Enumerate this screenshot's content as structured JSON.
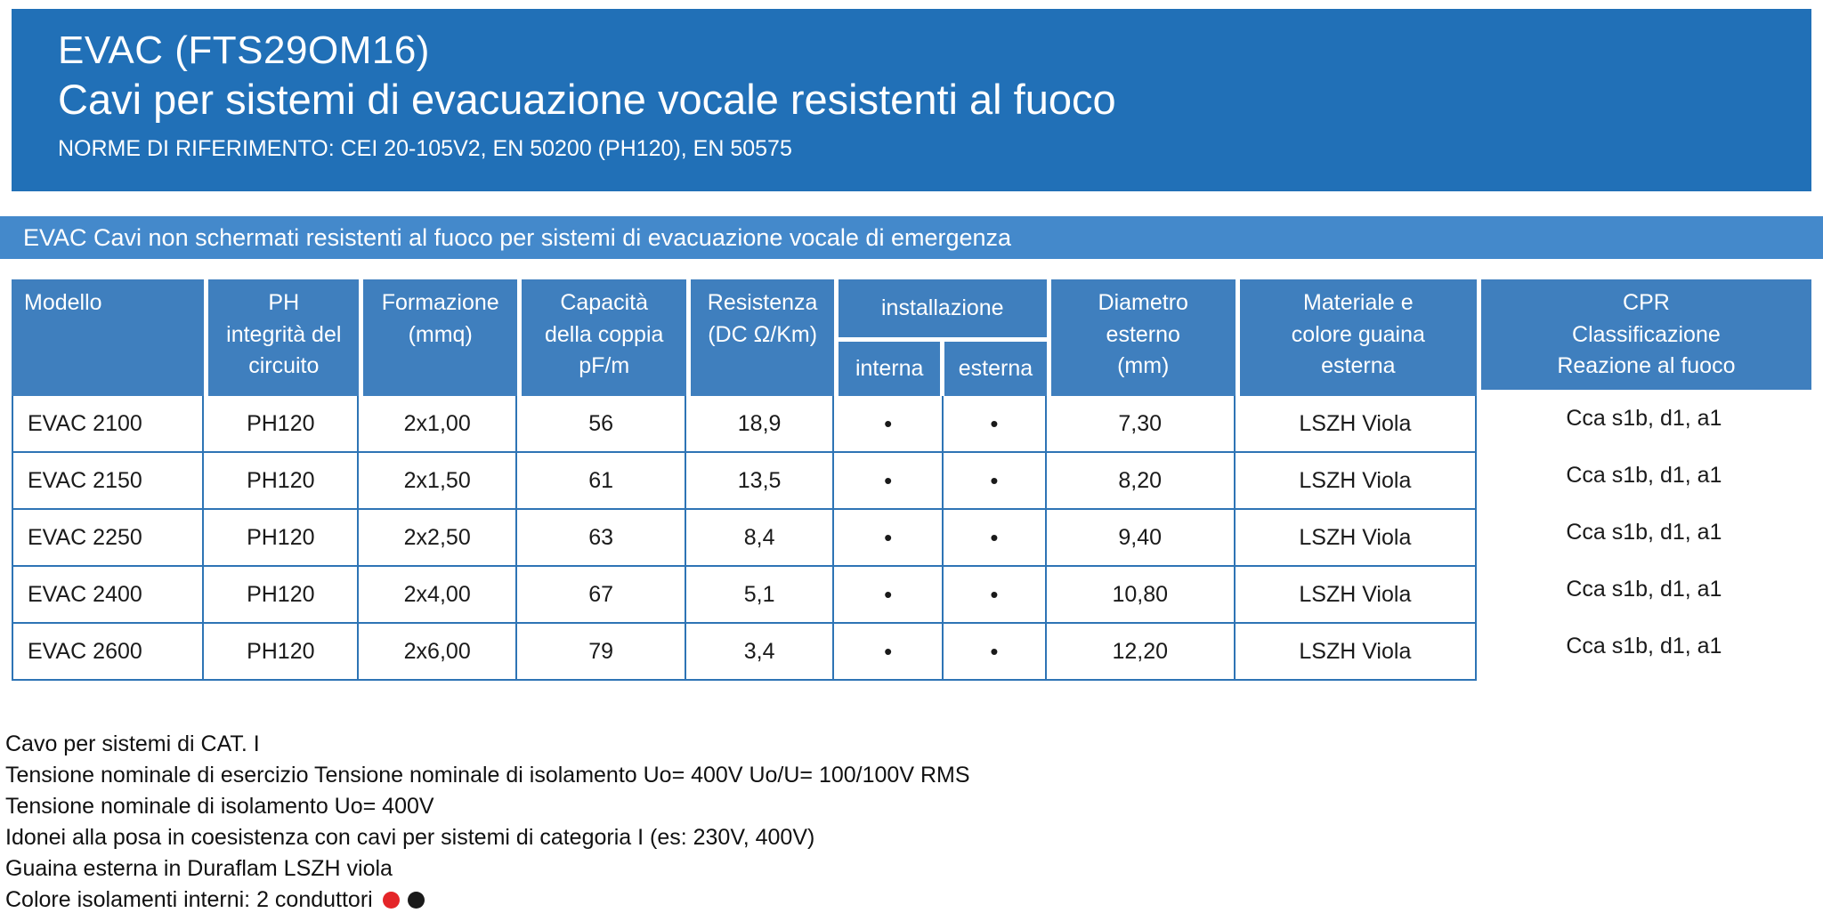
{
  "header": {
    "title": "EVAC (FTS29OM16)",
    "subtitle": "Cavi per sistemi di evacuazione vocale resistenti al fuoco",
    "norms": "NORME DI RIFERIMENTO: CEI 20-105V2, EN 50200 (PH120), EN 50575"
  },
  "banner": {
    "text": "EVAC Cavi non schermati resistenti al fuoco per sistemi di evacuazione vocale di emergenza"
  },
  "table": {
    "headers": {
      "modello": "Modello",
      "ph": "PH\nintegrità del\ncircuito",
      "formazione": "Formazione\n(mmq)",
      "capacita": "Capacità\ndella coppia\npF/m",
      "resistenza": "Resistenza\n(DC Ω/Km)",
      "installazione": "installazione",
      "interna": "interna",
      "esterna": "esterna",
      "diametro": "Diametro\nesterno\n(mm)",
      "materiale": "Materiale e\ncolore guaina\nesterna",
      "cpr": "CPR\nClassificazione\nReazione al fuoco"
    },
    "rows": [
      {
        "modello": "EVAC 2100",
        "ph": "PH120",
        "formazione": "2x1,00",
        "capacita": "56",
        "resistenza": "18,9",
        "interna": "•",
        "esterna": "•",
        "diametro": "7,30",
        "materiale": "LSZH Viola",
        "cpr": "Cca s1b, d1, a1"
      },
      {
        "modello": "EVAC 2150",
        "ph": "PH120",
        "formazione": "2x1,50",
        "capacita": "61",
        "resistenza": "13,5",
        "interna": "•",
        "esterna": "•",
        "diametro": "8,20",
        "materiale": "LSZH Viola",
        "cpr": "Cca s1b, d1, a1"
      },
      {
        "modello": "EVAC 2250",
        "ph": "PH120",
        "formazione": "2x2,50",
        "capacita": "63",
        "resistenza": "8,4",
        "interna": "•",
        "esterna": "•",
        "diametro": "9,40",
        "materiale": "LSZH Viola",
        "cpr": "Cca s1b, d1, a1"
      },
      {
        "modello": "EVAC 2400",
        "ph": "PH120",
        "formazione": "2x4,00",
        "capacita": "67",
        "resistenza": "5,1",
        "interna": "•",
        "esterna": "•",
        "diametro": "10,80",
        "materiale": "LSZH Viola",
        "cpr": "Cca s1b, d1, a1"
      },
      {
        "modello": "EVAC 2600",
        "ph": "PH120",
        "formazione": "2x6,00",
        "capacita": "79",
        "resistenza": "3,4",
        "interna": "•",
        "esterna": "•",
        "diametro": "12,20",
        "materiale": "LSZH Viola",
        "cpr": "Cca s1b, d1, a1"
      }
    ]
  },
  "notes": {
    "lines": [
      "Cavo per sistemi di CAT. I",
      "Tensione nominale di esercizio Tensione nominale di isolamento Uo= 400V Uo/U= 100/100V RMS",
      "Tensione nominale di isolamento Uo= 400V",
      "Idonei alla posa in coesistenza con cavi per sistemi di categoria I (es: 230V, 400V)",
      "Guaina esterna in Duraflam LSZH viola"
    ],
    "legend_label": "Colore isolamenti interni: 2 conduttori",
    "dot_colors": {
      "conductor_1": "#e42528",
      "conductor_2": "#1a1a1a"
    }
  },
  "colors": {
    "header_bg": "#2170b7",
    "banner_bg": "#4489cb",
    "table_header_bg": "#3f7fbe",
    "grid_line": "#2e74b5"
  }
}
